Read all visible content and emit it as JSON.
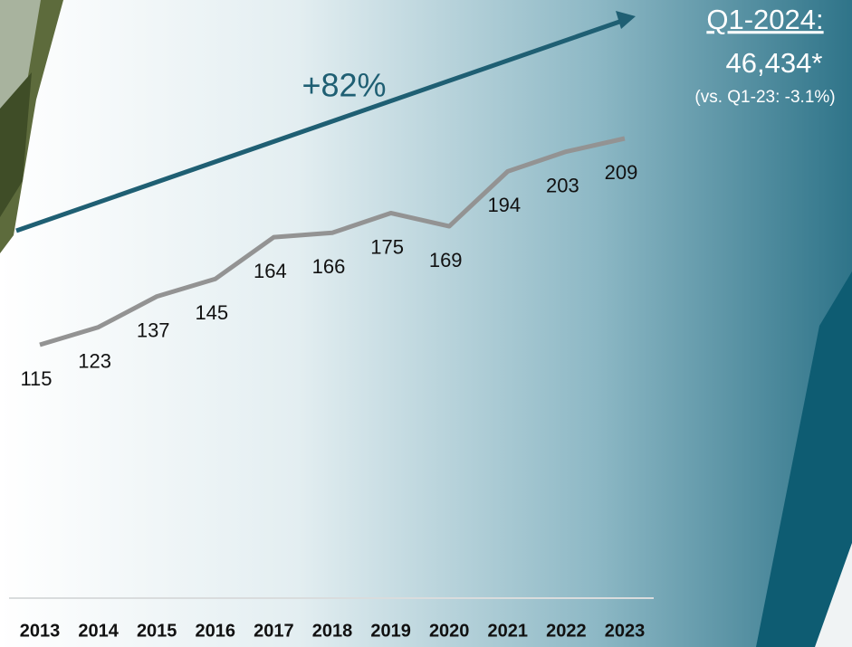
{
  "chart_data": {
    "type": "line",
    "categories": [
      "2013",
      "2014",
      "2015",
      "2016",
      "2017",
      "2018",
      "2019",
      "2020",
      "2021",
      "2022",
      "2023"
    ],
    "values": [
      115,
      123,
      137,
      145,
      164,
      166,
      175,
      169,
      194,
      203,
      209
    ],
    "color": "#939393",
    "annotations": {
      "growth": "+82%",
      "headline": "Q1-2024:",
      "headline_value": "46,434*",
      "comparison": "(vs. Q1-23: -3.1%)"
    }
  }
}
